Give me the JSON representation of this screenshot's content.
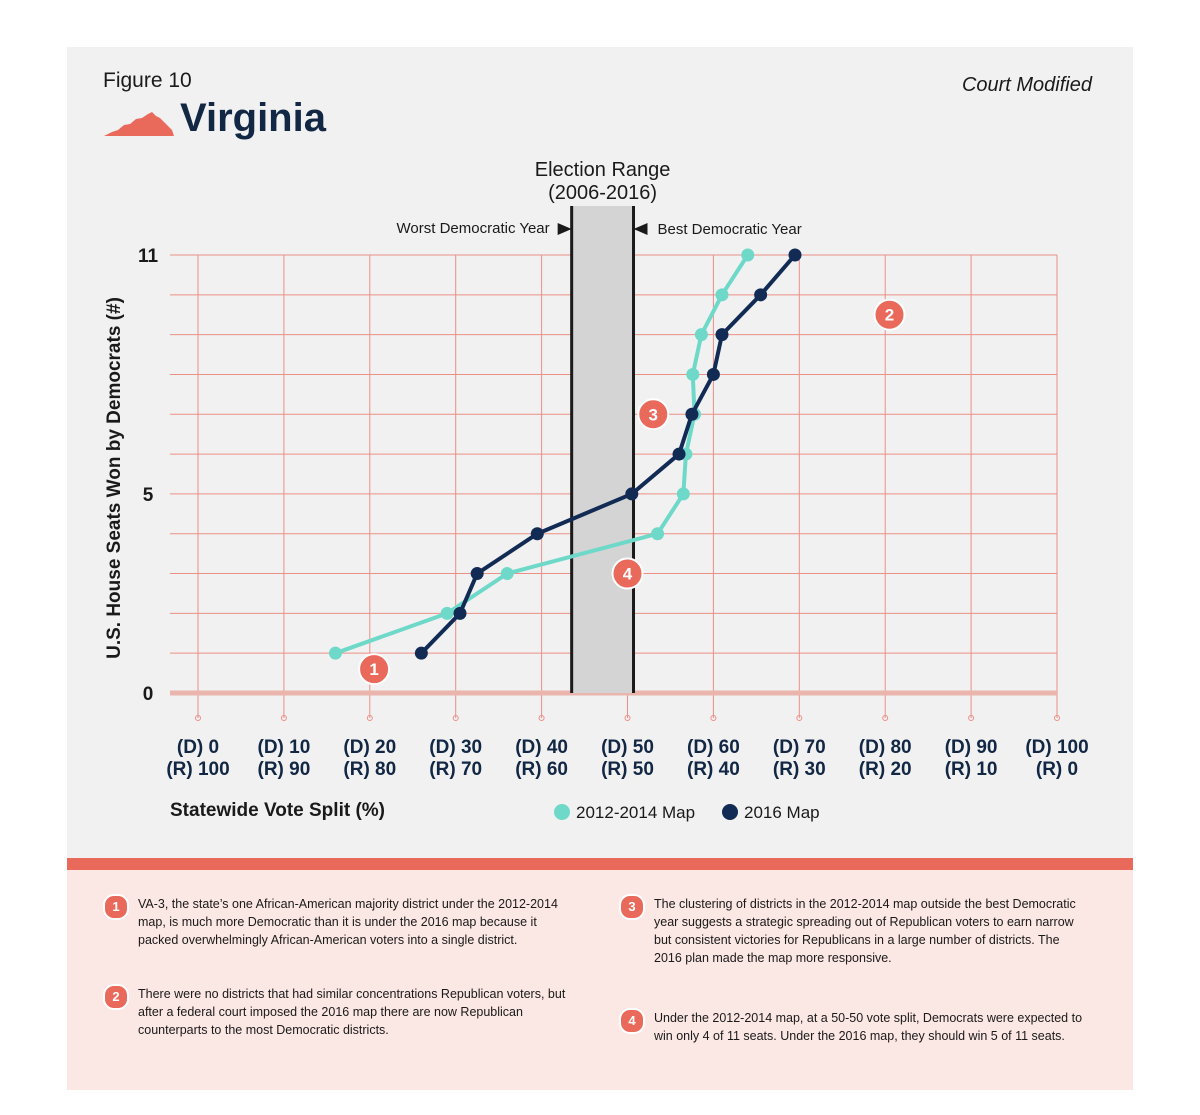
{
  "figure_label": "Figure 10",
  "state_name": "Virginia",
  "court_label": "Court Modified",
  "colors": {
    "map_2012": "#6ed8c9",
    "map_2016": "#122b54",
    "accent": "#e9695a",
    "grid": "#ec8f85",
    "range_fill": "#d4d4d4"
  },
  "chart_data": {
    "type": "line",
    "title": "Virginia",
    "xlabel": "Statewide Vote Split (%)",
    "ylabel": "U.S. House Seats Won by Democrats (#)",
    "xlim": [
      0,
      100
    ],
    "ylim": [
      0,
      11
    ],
    "x_ticks": [
      {
        "d": "(D) 0",
        "r": "(R) 100"
      },
      {
        "d": "(D) 10",
        "r": "(R) 90"
      },
      {
        "d": "(D) 20",
        "r": "(R) 80"
      },
      {
        "d": "(D) 30",
        "r": "(R) 70"
      },
      {
        "d": "(D) 40",
        "r": "(R) 60"
      },
      {
        "d": "(D) 50",
        "r": "(R) 50"
      },
      {
        "d": "(D) 60",
        "r": "(R) 40"
      },
      {
        "d": "(D) 70",
        "r": "(R) 30"
      },
      {
        "d": "(D) 80",
        "r": "(R) 20"
      },
      {
        "d": "(D) 90",
        "r": "(R) 10"
      },
      {
        "d": "(D) 100",
        "r": "(R) 0"
      }
    ],
    "y_ticks": [
      "0",
      "5",
      "11"
    ],
    "election_range": {
      "title": "Election Range",
      "subtitle": "(2006-2016)",
      "worst_label": "Worst Democratic Year",
      "best_label": "Best Democratic Year",
      "min": 43.5,
      "max": 50.7
    },
    "series": [
      {
        "name": "2012-2014 Map",
        "color": "#6ed8c9",
        "x": [
          16,
          29,
          36,
          53.5,
          56.5,
          56.8,
          57.8,
          57.6,
          58.6,
          61,
          64
        ],
        "y": [
          1,
          2,
          3,
          4,
          5,
          6,
          7,
          8,
          9,
          10,
          11
        ]
      },
      {
        "name": "2016 Map",
        "color": "#122b54",
        "x": [
          26,
          30.5,
          32.5,
          39.5,
          50.5,
          56,
          57.5,
          60,
          61,
          65.5,
          69.5
        ],
        "y": [
          1,
          2,
          3,
          4,
          5,
          6,
          7,
          8,
          9,
          10,
          11
        ]
      }
    ],
    "annotations": [
      {
        "label": "1",
        "x": 20.5,
        "y": 0.6
      },
      {
        "label": "2",
        "x": 80.5,
        "y": 9.5
      },
      {
        "label": "3",
        "x": 53,
        "y": 7
      },
      {
        "label": "4",
        "x": 50,
        "y": 3
      }
    ]
  },
  "notes": [
    {
      "num": "1",
      "text": "VA-3, the state’s one African-American majority district under the 2012-2014 map, is much more Democratic than it is under the 2016 map because it packed overwhelmingly African-American voters into a single district."
    },
    {
      "num": "2",
      "text": "There were no districts that had similar concentrations Republican voters, but after a federal court imposed the 2016 map there are now Republican counterparts to the most Democratic districts."
    },
    {
      "num": "3",
      "text": "The clustering of districts in the 2012-2014 map outside the best Democratic year suggests a strategic spreading out of Republican voters to earn narrow but consistent victories for Republicans in a large number of districts. The 2016 plan made the map more responsive."
    },
    {
      "num": "4",
      "text": "Under the 2012-2014 map, at a 50-50 vote split, Democrats were expected to win only 4 of 11 seats. Under the 2016 map, they should win 5 of 11 seats."
    }
  ]
}
